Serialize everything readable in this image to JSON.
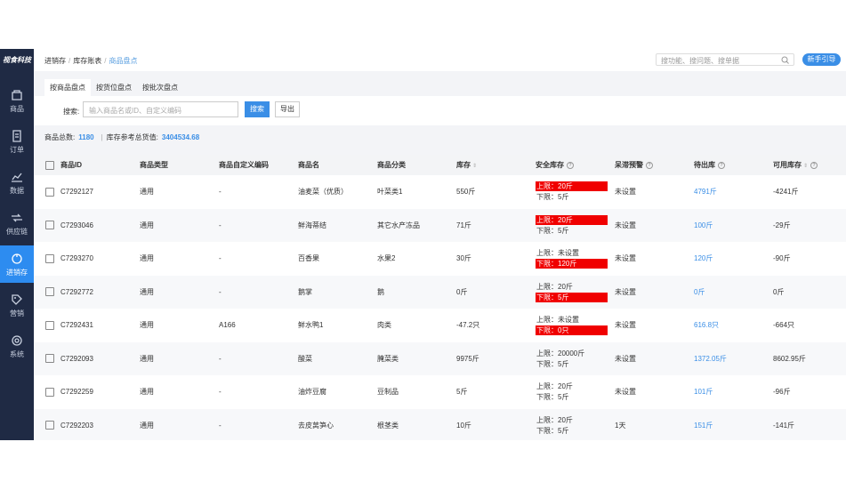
{
  "sidebar": {
    "logo": "视食科技",
    "menu": [
      "商品",
      "订单",
      "数据",
      "供应链",
      "进销存",
      "营销",
      "系统"
    ],
    "active": 4
  },
  "header": {
    "breadcrumb": [
      "进销存",
      "库存账表",
      "商品盘点"
    ],
    "search_placeholder": "搜功能、搜问题、搜单据",
    "guide_button": "新手引导"
  },
  "tabs": {
    "items": [
      "按商品盘点",
      "按货位盘点",
      "按批次盘点"
    ],
    "active": 0
  },
  "filter": {
    "label": "搜索:",
    "placeholder": "输入商品名或ID、自定义编码",
    "search_button": "搜索",
    "export_button": "导出"
  },
  "summary": {
    "count_label": "商品总数:",
    "count": "1180",
    "value_label": "库存参考总货值:",
    "value": "3404534.68"
  },
  "table": {
    "columns": [
      {
        "label": "商品ID",
        "sort": false,
        "help": false
      },
      {
        "label": "商品类型",
        "sort": false,
        "help": false
      },
      {
        "label": "商品自定义编码",
        "sort": false,
        "help": false
      },
      {
        "label": "商品名",
        "sort": false,
        "help": false
      },
      {
        "label": "商品分类",
        "sort": false,
        "help": false
      },
      {
        "label": "库存",
        "sort": true,
        "help": false
      },
      {
        "label": "安全库存",
        "sort": false,
        "help": true
      },
      {
        "label": "呆滞预警",
        "sort": false,
        "help": true
      },
      {
        "label": "待出库",
        "sort": false,
        "help": true
      },
      {
        "label": "可用库存",
        "sort": true,
        "help": true
      }
    ],
    "rows": [
      {
        "id": "C7292127",
        "type": "通用",
        "code": "-",
        "name": "油麦菜（优质）",
        "category": "叶菜类1",
        "stock": "550斤",
        "upper": "上限：20斤",
        "lower": "下限：5斤",
        "alert": "upper",
        "warning": "未设置",
        "pending": "4791斤",
        "available": "-4241斤"
      },
      {
        "id": "C7293046",
        "type": "通用",
        "code": "-",
        "name": "鲜海蒂结",
        "category": "其它水产冻品",
        "stock": "71斤",
        "upper": "上限：20斤",
        "lower": "下限：5斤",
        "alert": "upper",
        "warning": "未设置",
        "pending": "100斤",
        "available": "-29斤"
      },
      {
        "id": "C7293270",
        "type": "通用",
        "code": "-",
        "name": "百香果",
        "category": "水果2",
        "stock": "30斤",
        "upper": "上限：未设置",
        "lower": "下限：120斤",
        "alert": "lower",
        "warning": "未设置",
        "pending": "120斤",
        "available": "-90斤"
      },
      {
        "id": "C7292772",
        "type": "通用",
        "code": "-",
        "name": "鹅掌",
        "category": "鹅",
        "stock": "0斤",
        "upper": "上限：20斤",
        "lower": "下限：5斤",
        "alert": "lower",
        "warning": "未设置",
        "pending": "0斤",
        "available": "0斤"
      },
      {
        "id": "C7292431",
        "type": "通用",
        "code": "A166",
        "name": "鲜水鸭1",
        "category": "肉类",
        "stock": "-47.2只",
        "upper": "上限：未设置",
        "lower": "下限：0只",
        "alert": "lower",
        "warning": "未设置",
        "pending": "616.8只",
        "available": "-664只"
      },
      {
        "id": "C7292093",
        "type": "通用",
        "code": "-",
        "name": "酸菜",
        "category": "腌菜类",
        "stock": "9975斤",
        "upper": "上限：20000斤",
        "lower": "下限：5斤",
        "alert": "none",
        "warning": "未设置",
        "pending": "1372.05斤",
        "available": "8602.95斤"
      },
      {
        "id": "C7292259",
        "type": "通用",
        "code": "-",
        "name": "油炸豆腐",
        "category": "豆制品",
        "stock": "5斤",
        "upper": "上限：20斤",
        "lower": "下限：5斤",
        "alert": "none",
        "warning": "未设置",
        "pending": "101斤",
        "available": "-96斤"
      },
      {
        "id": "C7292203",
        "type": "通用",
        "code": "-",
        "name": "去皮莴笋心",
        "category": "根茎类",
        "stock": "10斤",
        "upper": "上限：20斤",
        "lower": "下限：5斤",
        "alert": "none",
        "warning": "1天",
        "pending": "151斤",
        "available": "-141斤"
      }
    ]
  }
}
